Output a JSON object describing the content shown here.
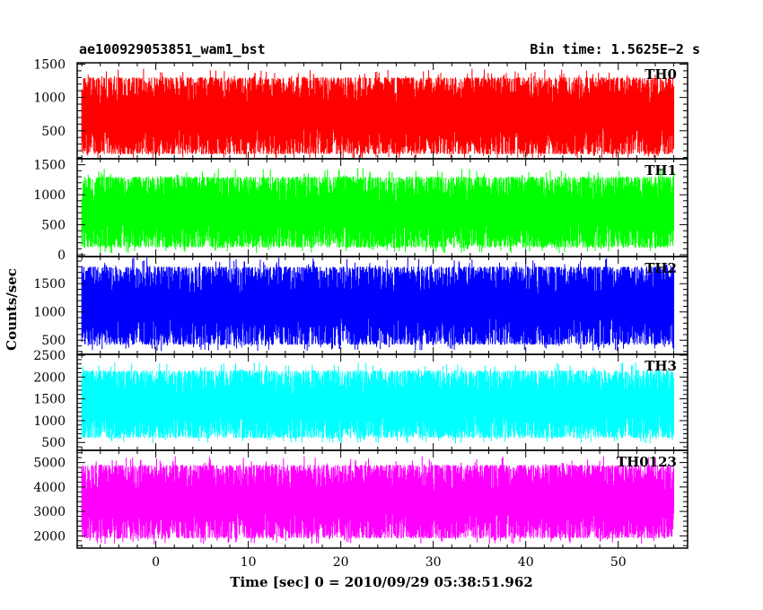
{
  "chart_data": {
    "type": "line",
    "title": "ae100929053851_wam1_bst",
    "subtitle": "Bin time: 1.5625E−2 s",
    "xlabel": "Time [sec] 0 = 2010/09/29 05:38:51.962",
    "ylabel": "Counts/sec",
    "xlim": [
      -8.5,
      57.5
    ],
    "x_ticks": [
      0,
      10,
      20,
      30,
      40,
      50
    ],
    "x_tick_labels": [
      "0",
      "10",
      "20",
      "30",
      "40",
      "50"
    ],
    "x_data_range": [
      -8,
      56
    ],
    "grid": false,
    "panels": [
      {
        "name": "TH0",
        "color": "#ff0000",
        "ylim": [
          80,
          1520
        ],
        "y_ticks": [
          500,
          1000,
          1500
        ],
        "y_tick_labels": [
          "500",
          "1000",
          "1500"
        ],
        "typical_range": [
          150,
          1300
        ]
      },
      {
        "name": "TH1",
        "color": "#00ff00",
        "ylim": [
          -30,
          1600
        ],
        "y_ticks": [
          0,
          500,
          1000,
          1500
        ],
        "y_tick_labels": [
          "0",
          "500",
          "1000",
          "1500"
        ],
        "typical_range": [
          120,
          1300
        ]
      },
      {
        "name": "TH2",
        "color": "#0000ff",
        "ylim": [
          250,
          1980
        ],
        "y_ticks": [
          500,
          1000,
          1500
        ],
        "y_tick_labels": [
          "500",
          "1000",
          "1500"
        ],
        "typical_range": [
          420,
          1800
        ]
      },
      {
        "name": "TH3",
        "color": "#00ffff",
        "ylim": [
          320,
          2520
        ],
        "y_ticks": [
          500,
          1000,
          1500,
          2000,
          2500
        ],
        "y_tick_labels": [
          "500",
          "1000",
          "1500",
          "2000",
          "2500"
        ],
        "typical_range": [
          600,
          2150
        ]
      },
      {
        "name": "TH0123",
        "color": "#ff00ff",
        "ylim": [
          1500,
          5500
        ],
        "y_ticks": [
          2000,
          3000,
          4000,
          5000
        ],
        "y_tick_labels": [
          "2000",
          "3000",
          "4000",
          "5000"
        ],
        "typical_range": [
          1900,
          4900
        ]
      }
    ]
  }
}
